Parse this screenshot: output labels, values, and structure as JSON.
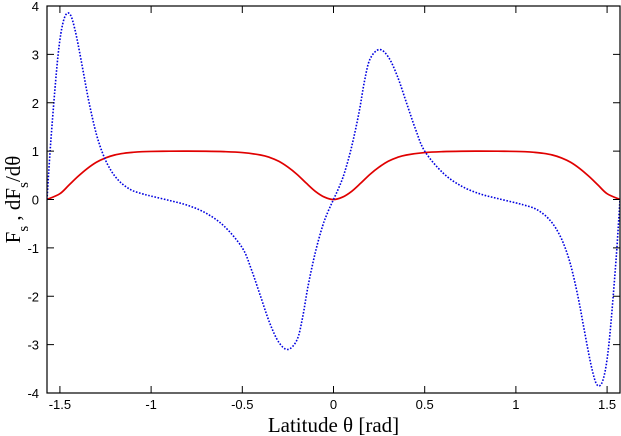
{
  "chart_data": {
    "type": "line",
    "xlabel": "Latitude θ [rad]",
    "ylabel": "F_s , dF_s/dθ",
    "xlim": [
      -1.5708,
      1.5708
    ],
    "ylim": [
      -4,
      4
    ],
    "xticks": [
      -1.5,
      -1,
      -0.5,
      0,
      0.5,
      1,
      1.5
    ],
    "xtick_labels": [
      "-1.5",
      "-1",
      "-0.5",
      "0",
      "0.5",
      "1",
      "1.5"
    ],
    "yticks": [
      -4,
      -3,
      -2,
      -1,
      0,
      1,
      2,
      3,
      4
    ],
    "ytick_labels": [
      "-4",
      "-3",
      "-2",
      "-1",
      "0",
      "1",
      "2",
      "3",
      "4"
    ],
    "grid": false,
    "series": [
      {
        "style": "solid",
        "color": "#e00000",
        "x": [
          -1.5708,
          -1.5,
          -1.45,
          -1.4,
          -1.35,
          -1.3,
          -1.25,
          -1.2,
          -1.15,
          -1.1,
          -1.05,
          -1.0,
          -0.9,
          -0.8,
          -0.7,
          -0.6,
          -0.5,
          -0.4,
          -0.35,
          -0.3,
          -0.25,
          -0.2,
          -0.15,
          -0.1,
          -0.05,
          0.0,
          0.05,
          0.1,
          0.15,
          0.2,
          0.25,
          0.3,
          0.35,
          0.4,
          0.5,
          0.6,
          0.7,
          0.8,
          0.9,
          1.0,
          1.05,
          1.1,
          1.15,
          1.2,
          1.25,
          1.3,
          1.35,
          1.4,
          1.45,
          1.5,
          1.5708
        ],
        "y": [
          0.0,
          0.12,
          0.3,
          0.48,
          0.64,
          0.77,
          0.86,
          0.92,
          0.955,
          0.975,
          0.988,
          0.994,
          0.999,
          1.0,
          0.998,
          0.99,
          0.97,
          0.92,
          0.87,
          0.79,
          0.67,
          0.52,
          0.34,
          0.17,
          0.05,
          0.0,
          0.05,
          0.17,
          0.34,
          0.52,
          0.67,
          0.79,
          0.87,
          0.92,
          0.97,
          0.99,
          0.998,
          1.0,
          0.999,
          0.994,
          0.988,
          0.975,
          0.955,
          0.92,
          0.86,
          0.77,
          0.64,
          0.48,
          0.3,
          0.12,
          0.0
        ]
      },
      {
        "style": "dotted",
        "color": "#0000e0",
        "x": [
          -1.5708,
          -1.55,
          -1.52,
          -1.5,
          -1.48,
          -1.46,
          -1.44,
          -1.42,
          -1.4,
          -1.37,
          -1.34,
          -1.3,
          -1.26,
          -1.22,
          -1.18,
          -1.14,
          -1.1,
          -1.05,
          -1.0,
          -0.9,
          -0.8,
          -0.7,
          -0.6,
          -0.5,
          -0.45,
          -0.4,
          -0.35,
          -0.3,
          -0.25,
          -0.2,
          -0.17,
          -0.14,
          -0.1,
          -0.06,
          -0.03,
          0.0,
          0.03,
          0.06,
          0.1,
          0.14,
          0.17,
          0.2,
          0.25,
          0.3,
          0.35,
          0.4,
          0.45,
          0.5,
          0.6,
          0.7,
          0.8,
          0.9,
          1.0,
          1.05,
          1.1,
          1.14,
          1.18,
          1.22,
          1.26,
          1.3,
          1.34,
          1.37,
          1.4,
          1.42,
          1.44,
          1.46,
          1.48,
          1.5,
          1.52,
          1.55,
          1.5708
        ],
        "y": [
          0.0,
          1.2,
          2.6,
          3.3,
          3.7,
          3.85,
          3.8,
          3.55,
          3.2,
          2.6,
          2.0,
          1.35,
          0.9,
          0.6,
          0.4,
          0.27,
          0.18,
          0.12,
          0.07,
          -0.02,
          -0.12,
          -0.28,
          -0.55,
          -1.0,
          -1.45,
          -2.0,
          -2.55,
          -2.95,
          -3.1,
          -2.9,
          -2.45,
          -1.8,
          -1.1,
          -0.55,
          -0.25,
          0.0,
          0.25,
          0.55,
          1.1,
          1.8,
          2.45,
          2.9,
          3.1,
          2.95,
          2.55,
          2.0,
          1.45,
          1.0,
          0.55,
          0.28,
          0.12,
          0.02,
          -0.07,
          -0.12,
          -0.18,
          -0.27,
          -0.4,
          -0.6,
          -0.9,
          -1.35,
          -2.0,
          -2.6,
          -3.2,
          -3.55,
          -3.8,
          -3.85,
          -3.7,
          -3.3,
          -2.6,
          -1.2,
          0.0
        ]
      }
    ]
  }
}
